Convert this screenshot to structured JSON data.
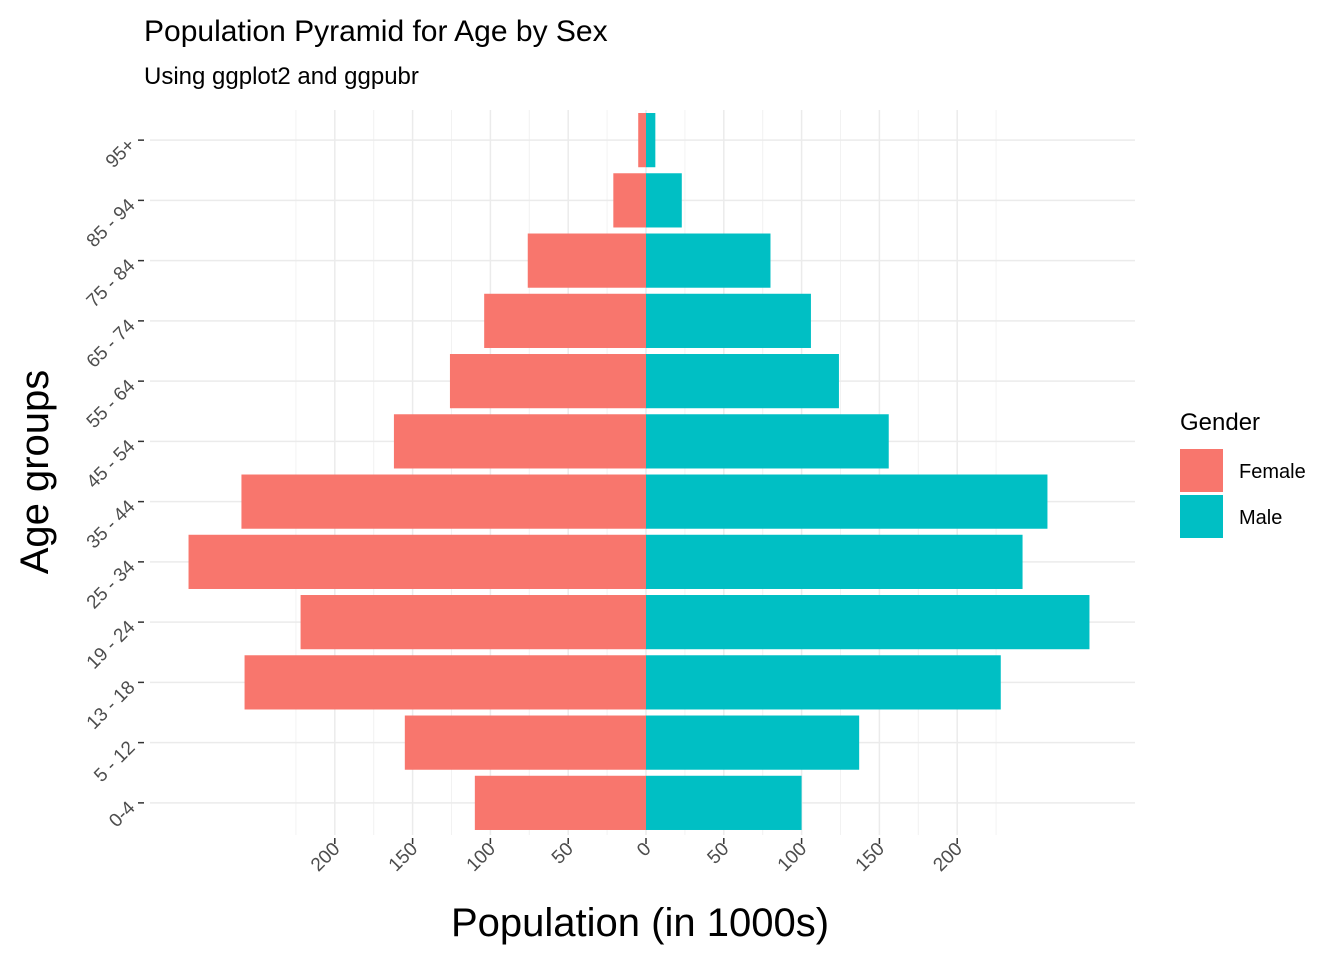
{
  "chart_data": {
    "type": "bar",
    "orientation": "horizontal",
    "title": "Population Pyramid for Age by Sex",
    "subtitle": "Using ggplot2 and ggpubr",
    "xlabel": "Population (in 1000s)",
    "ylabel": "Age groups",
    "categories": [
      "0-4",
      "5 - 12",
      "13 - 18",
      "19 - 24",
      "25 - 34",
      "35 - 44",
      "45 - 54",
      "55 - 64",
      "65 - 74",
      "75 - 84",
      "85 - 94",
      "95+"
    ],
    "series": [
      {
        "name": "Female",
        "color": "#F8766D",
        "values": [
          -110,
          -155,
          -258,
          -222,
          -294,
          -260,
          -162,
          -126,
          -104,
          -76,
          -21,
          -5
        ]
      },
      {
        "name": "Male",
        "color": "#00BFC4",
        "values": [
          100,
          137,
          228,
          285,
          242,
          258,
          156,
          124,
          106,
          80,
          23,
          6
        ]
      }
    ],
    "x_ticks": [
      -200,
      -150,
      -100,
      -50,
      0,
      50,
      100,
      150,
      200
    ],
    "x_tick_labels": [
      "200",
      "150",
      "100",
      "50",
      "0",
      "50",
      "100",
      "150",
      "200"
    ],
    "xlim": [
      -315,
      315
    ],
    "grid": true,
    "legend": {
      "title": "Gender",
      "position": "right",
      "labels": [
        "Female",
        "Male"
      ]
    }
  }
}
